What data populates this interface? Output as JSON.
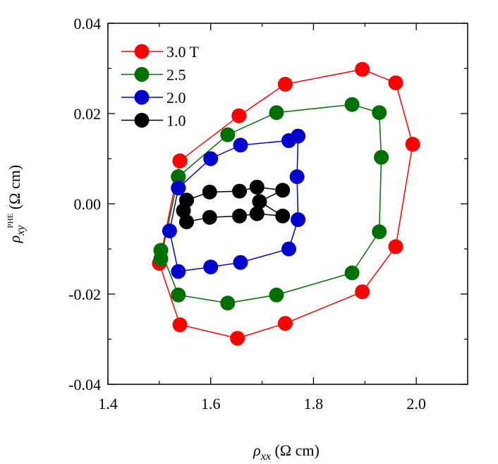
{
  "chart_data": {
    "type": "scatter",
    "xlabel": {
      "symbol": "ρ",
      "subscript": "xx",
      "unit": "(Ω cm)"
    },
    "ylabel": {
      "symbol": "ρ",
      "subscript": "xy",
      "superscript": "PHE",
      "unit": "(Ω cm)"
    },
    "xlim": [
      1.4,
      2.1
    ],
    "ylim": [
      -0.04,
      0.04
    ],
    "xticks": [
      1.4,
      1.6,
      1.8,
      2.0
    ],
    "xtick_labels": [
      "1.4",
      "1.6",
      "1.8",
      "2.0"
    ],
    "yticks": [
      -0.04,
      -0.02,
      0.0,
      0.02,
      0.04
    ],
    "ytick_labels": [
      "-0.04",
      "-0.02",
      "0.00",
      "0.02",
      "0.04"
    ],
    "legend_position": "top-left",
    "series": [
      {
        "name": "3.0 T",
        "color": "#ff0000",
        "points": [
          [
            1.54,
            0.0095
          ],
          [
            1.655,
            0.0195
          ],
          [
            1.745,
            0.0265
          ],
          [
            1.895,
            0.0298
          ],
          [
            1.96,
            0.0268
          ],
          [
            1.993,
            0.0132
          ],
          [
            1.96,
            -0.0095
          ],
          [
            1.895,
            -0.0195
          ],
          [
            1.745,
            -0.0265
          ],
          [
            1.652,
            -0.0298
          ],
          [
            1.54,
            -0.0268
          ],
          [
            1.5,
            -0.0132
          ],
          [
            1.54,
            0.0095
          ]
        ]
      },
      {
        "name": "2.5",
        "color": "#007000",
        "points": [
          [
            1.537,
            0.006
          ],
          [
            1.633,
            0.0153
          ],
          [
            1.728,
            0.0202
          ],
          [
            1.875,
            0.022
          ],
          [
            1.928,
            0.0202
          ],
          [
            1.932,
            0.0103
          ],
          [
            1.928,
            -0.0062
          ],
          [
            1.875,
            -0.0153
          ],
          [
            1.728,
            -0.0202
          ],
          [
            1.633,
            -0.022
          ],
          [
            1.537,
            -0.0202
          ],
          [
            1.503,
            -0.0103
          ],
          [
            1.503,
            -0.0122
          ],
          [
            1.537,
            0.006
          ]
        ]
      },
      {
        "name": "2.0",
        "color": "#0000cc",
        "points": [
          [
            1.537,
            0.0035
          ],
          [
            1.6,
            0.01
          ],
          [
            1.658,
            0.013
          ],
          [
            1.752,
            0.014
          ],
          [
            1.77,
            0.015
          ],
          [
            1.768,
            0.006
          ],
          [
            1.77,
            -0.0035
          ],
          [
            1.752,
            -0.01
          ],
          [
            1.658,
            -0.013
          ],
          [
            1.6,
            -0.014
          ],
          [
            1.537,
            -0.015
          ],
          [
            1.52,
            -0.006
          ],
          [
            1.537,
            0.0035
          ]
        ]
      },
      {
        "name": "1.0",
        "color": "#000000",
        "points": [
          [
            1.553,
            0.0008
          ],
          [
            1.598,
            0.0026
          ],
          [
            1.656,
            0.0028
          ],
          [
            1.69,
            0.0037
          ],
          [
            1.74,
            0.003
          ],
          [
            1.695,
            0.0005
          ],
          [
            1.74,
            -0.0027
          ],
          [
            1.69,
            -0.0022
          ],
          [
            1.656,
            -0.0027
          ],
          [
            1.598,
            -0.003
          ],
          [
            1.553,
            -0.004
          ],
          [
            1.547,
            -0.0015
          ],
          [
            1.553,
            0.0008
          ]
        ]
      }
    ]
  }
}
